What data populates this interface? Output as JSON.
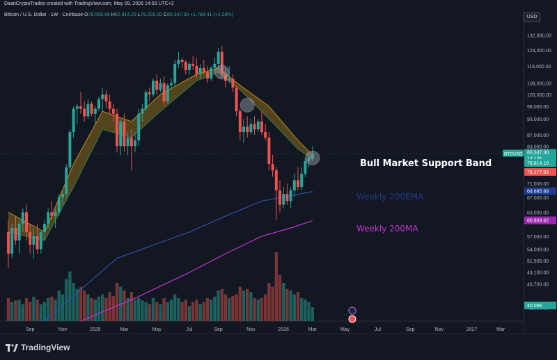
{
  "header": {
    "credit": "DaanCryptoTrades created with TradingView.com, May 09, 2026 14:03 UTC+2"
  },
  "legend": {
    "symbol": "Bitcoin / U.S. Dollar · 1W · Coinbase",
    "o_label": "O",
    "o_value": "78,558.88",
    "h_label": "H",
    "h_value": "82,814.23",
    "l_label": "L",
    "l_value": "78,205.00",
    "c_label": "C",
    "c_value": "80,347.30",
    "change": "+1,788.41 (+2.28%)"
  },
  "currency_button": "USD",
  "annotations": {
    "bmsb": "Bull Market Support Band",
    "ema200": "Weekly 200EMA",
    "ma200": "Weekly 200MA"
  },
  "brand": {
    "name": "TradingView"
  },
  "colors": {
    "background": "#131722",
    "up": "#26a69a",
    "down": "#ef5350",
    "ema200": "#2f4fa8",
    "ma200": "#c731d6",
    "band_fill": "#8a6a1a",
    "band_line": "#c08a1e",
    "ema_label": "#1e3a8a",
    "ma_label": "#c236d0"
  },
  "chart_data": {
    "type": "candlestick",
    "symbol": "BTCUSD",
    "timeframe": "1W",
    "ylim": [
      40000,
      140000
    ],
    "y_scale": "log",
    "y_ticks": [
      132000,
      124000,
      116000,
      108000,
      103000,
      98000,
      93000,
      87000,
      83000,
      78000,
      71000,
      67000,
      63000,
      57000,
      54000,
      51500,
      49100,
      46700,
      42300
    ],
    "y_tick_labels": [
      "132,000.00",
      "124,000.00",
      "116,000.00",
      "108,000.00",
      "103,000.00",
      "98,000.00",
      "93,000.00",
      "87,000.00",
      "83,000.00",
      "78,000.00",
      "71,000.00",
      "67,000.00",
      "63,000.00",
      "57,000.00",
      "54,000.00",
      "51,500.00",
      "49,100.00",
      "46,700.00",
      "42,300.00"
    ],
    "x_ticks": [
      {
        "label": "Sep",
        "i": 6
      },
      {
        "label": "Nov",
        "i": 15
      },
      {
        "label": "2025",
        "i": 24
      },
      {
        "label": "Mar",
        "i": 32
      },
      {
        "label": "May",
        "i": 41
      },
      {
        "label": "Jul",
        "i": 50
      },
      {
        "label": "Sep",
        "i": 58
      },
      {
        "label": "Nov",
        "i": 67
      },
      {
        "label": "2026",
        "i": 76
      },
      {
        "label": "Mar",
        "i": 84
      },
      {
        "label": "May",
        "i": 93
      },
      {
        "label": "Jul",
        "i": 102
      },
      {
        "label": "Sep",
        "i": 111
      },
      {
        "label": "Nov",
        "i": 119
      },
      {
        "label": "2027",
        "i": 128
      },
      {
        "label": "Mar",
        "i": 136
      }
    ],
    "candles": [
      [
        58000,
        61000,
        50000,
        53000
      ],
      [
        53000,
        60000,
        52000,
        59000
      ],
      [
        59000,
        62000,
        55000,
        56000
      ],
      [
        56000,
        61000,
        53000,
        60000
      ],
      [
        60000,
        64000,
        58000,
        63000
      ],
      [
        63000,
        65000,
        56000,
        58000
      ],
      [
        58000,
        60000,
        53000,
        55000
      ],
      [
        55000,
        59000,
        52000,
        57000
      ],
      [
        57000,
        60000,
        53000,
        54000
      ],
      [
        54000,
        58000,
        53000,
        58000
      ],
      [
        58000,
        61000,
        56000,
        60000
      ],
      [
        60000,
        64000,
        59000,
        63000
      ],
      [
        63000,
        66000,
        61000,
        62000
      ],
      [
        62000,
        64000,
        59000,
        63000
      ],
      [
        63000,
        68000,
        62000,
        67000
      ],
      [
        67000,
        69000,
        65000,
        68000
      ],
      [
        68000,
        77000,
        67000,
        76000
      ],
      [
        76000,
        89000,
        75000,
        88000
      ],
      [
        88000,
        98000,
        86000,
        97000
      ],
      [
        97000,
        99000,
        91000,
        98000
      ],
      [
        98000,
        104000,
        95000,
        97000
      ],
      [
        97000,
        100000,
        92000,
        94000
      ],
      [
        94000,
        101000,
        93000,
        99000
      ],
      [
        99000,
        100000,
        94000,
        95000
      ],
      [
        95000,
        98000,
        91000,
        97000
      ],
      [
        97000,
        102000,
        96000,
        101000
      ],
      [
        101000,
        106000,
        96000,
        103000
      ],
      [
        103000,
        105000,
        97000,
        100000
      ],
      [
        100000,
        103000,
        95000,
        97000
      ],
      [
        97000,
        99000,
        92000,
        95000
      ],
      [
        95000,
        97000,
        81000,
        83000
      ],
      [
        83000,
        93000,
        80000,
        92000
      ],
      [
        92000,
        95000,
        81000,
        83000
      ],
      [
        83000,
        88000,
        80000,
        86000
      ],
      [
        86000,
        89000,
        75000,
        83000
      ],
      [
        83000,
        88000,
        81000,
        85000
      ],
      [
        85000,
        97000,
        83000,
        95000
      ],
      [
        95000,
        99000,
        92000,
        97000
      ],
      [
        97000,
        105000,
        96000,
        104000
      ],
      [
        104000,
        106000,
        100000,
        103000
      ],
      [
        103000,
        110000,
        102000,
        109000
      ],
      [
        109000,
        112000,
        103000,
        105000
      ],
      [
        105000,
        110000,
        104000,
        108000
      ],
      [
        108000,
        111000,
        98000,
        100000
      ],
      [
        100000,
        108000,
        99000,
        107000
      ],
      [
        107000,
        110000,
        105000,
        108000
      ],
      [
        108000,
        119000,
        107000,
        117000
      ],
      [
        117000,
        123000,
        115000,
        119000
      ],
      [
        119000,
        120000,
        115000,
        118000
      ],
      [
        118000,
        119000,
        112000,
        114000
      ],
      [
        114000,
        118000,
        112000,
        117000
      ],
      [
        117000,
        121000,
        114000,
        116000
      ],
      [
        116000,
        120000,
        110000,
        112000
      ],
      [
        112000,
        117000,
        110000,
        115000
      ],
      [
        115000,
        119000,
        112000,
        113000
      ],
      [
        113000,
        116000,
        108000,
        110000
      ],
      [
        110000,
        116000,
        109000,
        115000
      ],
      [
        115000,
        120000,
        113000,
        117000
      ],
      [
        117000,
        125000,
        115000,
        123000
      ],
      [
        123000,
        126000,
        110000,
        112000
      ],
      [
        112000,
        115000,
        106000,
        109000
      ],
      [
        109000,
        116000,
        108000,
        110000
      ],
      [
        110000,
        112000,
        104000,
        106000
      ],
      [
        106000,
        107000,
        94000,
        96000
      ],
      [
        96000,
        97000,
        85000,
        88000
      ],
      [
        88000,
        93000,
        84000,
        90000
      ],
      [
        90000,
        94000,
        86000,
        88000
      ],
      [
        88000,
        93000,
        87000,
        91000
      ],
      [
        91000,
        94000,
        87000,
        89000
      ],
      [
        89000,
        93000,
        88000,
        92000
      ],
      [
        92000,
        96000,
        87000,
        88000
      ],
      [
        88000,
        91000,
        85000,
        86000
      ],
      [
        86000,
        88000,
        75000,
        77000
      ],
      [
        77000,
        80000,
        73000,
        75000
      ],
      [
        75000,
        76000,
        61000,
        69000
      ],
      [
        69000,
        72000,
        63000,
        65000
      ],
      [
        65000,
        70000,
        64000,
        68000
      ],
      [
        68000,
        71000,
        65000,
        66000
      ],
      [
        66000,
        70000,
        64000,
        69000
      ],
      [
        69000,
        74000,
        67000,
        72000
      ],
      [
        72000,
        76000,
        69000,
        70000
      ],
      [
        70000,
        76000,
        69000,
        74000
      ],
      [
        74000,
        79000,
        73000,
        78000
      ],
      [
        78000,
        80000,
        76000,
        79000
      ],
      [
        79000,
        83000,
        78000,
        80347
      ]
    ],
    "volume": [
      0.3,
      0.25,
      0.27,
      0.28,
      0.22,
      0.3,
      0.25,
      0.32,
      0.28,
      0.22,
      0.25,
      0.3,
      0.32,
      0.28,
      0.4,
      0.35,
      0.55,
      0.65,
      0.5,
      0.42,
      0.45,
      0.4,
      0.35,
      0.3,
      0.28,
      0.32,
      0.35,
      0.3,
      0.38,
      0.33,
      0.5,
      0.45,
      0.4,
      0.3,
      0.38,
      0.28,
      0.3,
      0.27,
      0.25,
      0.22,
      0.3,
      0.25,
      0.22,
      0.3,
      0.25,
      0.28,
      0.35,
      0.3,
      0.25,
      0.28,
      0.2,
      0.25,
      0.28,
      0.22,
      0.25,
      0.3,
      0.28,
      0.32,
      0.4,
      0.42,
      0.35,
      0.3,
      0.33,
      0.35,
      0.45,
      0.4,
      0.42,
      0.38,
      0.3,
      0.28,
      0.3,
      0.35,
      0.5,
      0.45,
      0.9,
      0.6,
      0.5,
      0.42,
      0.4,
      0.35,
      0.38,
      0.3,
      0.28,
      0.25,
      0.18
    ],
    "ema_200w": [
      {
        "i": 10,
        "v": 40000
      },
      {
        "i": 30,
        "v": 52000
      },
      {
        "i": 50,
        "v": 58000
      },
      {
        "i": 60,
        "v": 62000
      },
      {
        "i": 70,
        "v": 66000
      },
      {
        "i": 78,
        "v": 67500
      },
      {
        "i": 84,
        "v": 68686
      }
    ],
    "ma_200w": [
      {
        "i": 20,
        "v": 40000
      },
      {
        "i": 35,
        "v": 44000
      },
      {
        "i": 50,
        "v": 49000
      },
      {
        "i": 60,
        "v": 53000
      },
      {
        "i": 70,
        "v": 57000
      },
      {
        "i": 78,
        "v": 59000
      },
      {
        "i": 84,
        "v": 60810
      }
    ],
    "bmsb_upper": [
      {
        "i": 0,
        "v": 63000
      },
      {
        "i": 10,
        "v": 58000
      },
      {
        "i": 18,
        "v": 77000
      },
      {
        "i": 26,
        "v": 96000
      },
      {
        "i": 34,
        "v": 92000
      },
      {
        "i": 42,
        "v": 103000
      },
      {
        "i": 52,
        "v": 112000
      },
      {
        "i": 58,
        "v": 115000
      },
      {
        "i": 64,
        "v": 107000
      },
      {
        "i": 72,
        "v": 98000
      },
      {
        "i": 80,
        "v": 85000
      },
      {
        "i": 84,
        "v": 80000
      }
    ],
    "bmsb_lower": [
      {
        "i": 0,
        "v": 58000
      },
      {
        "i": 10,
        "v": 56000
      },
      {
        "i": 18,
        "v": 70000
      },
      {
        "i": 26,
        "v": 89000
      },
      {
        "i": 34,
        "v": 86000
      },
      {
        "i": 42,
        "v": 96000
      },
      {
        "i": 52,
        "v": 109000
      },
      {
        "i": 58,
        "v": 113000
      },
      {
        "i": 64,
        "v": 105000
      },
      {
        "i": 72,
        "v": 93000
      },
      {
        "i": 80,
        "v": 82000
      },
      {
        "i": 84,
        "v": 78614
      }
    ],
    "circles": [
      {
        "i": 59,
        "v": 113000
      },
      {
        "i": 66,
        "v": 98500
      },
      {
        "i": 84,
        "v": 79000
      }
    ],
    "price_labels": [
      {
        "text": "80,347.30",
        "sub": "1d 12h",
        "v": 80347,
        "color": "#26a69a",
        "tag": "BTCUSD"
      },
      {
        "text": "78,614.10",
        "v": 78614,
        "color": "#26a69a"
      },
      {
        "text": "76,177.93",
        "v": 76178,
        "color": "#ef5350"
      },
      {
        "text": "68,685.89",
        "v": 68686,
        "color": "#1e3a8a"
      },
      {
        "text": "60,809.62",
        "v": 60810,
        "color": "#9c27b0"
      },
      {
        "text": "40.05K",
        "v": -1,
        "color": "#26a69a"
      }
    ]
  }
}
